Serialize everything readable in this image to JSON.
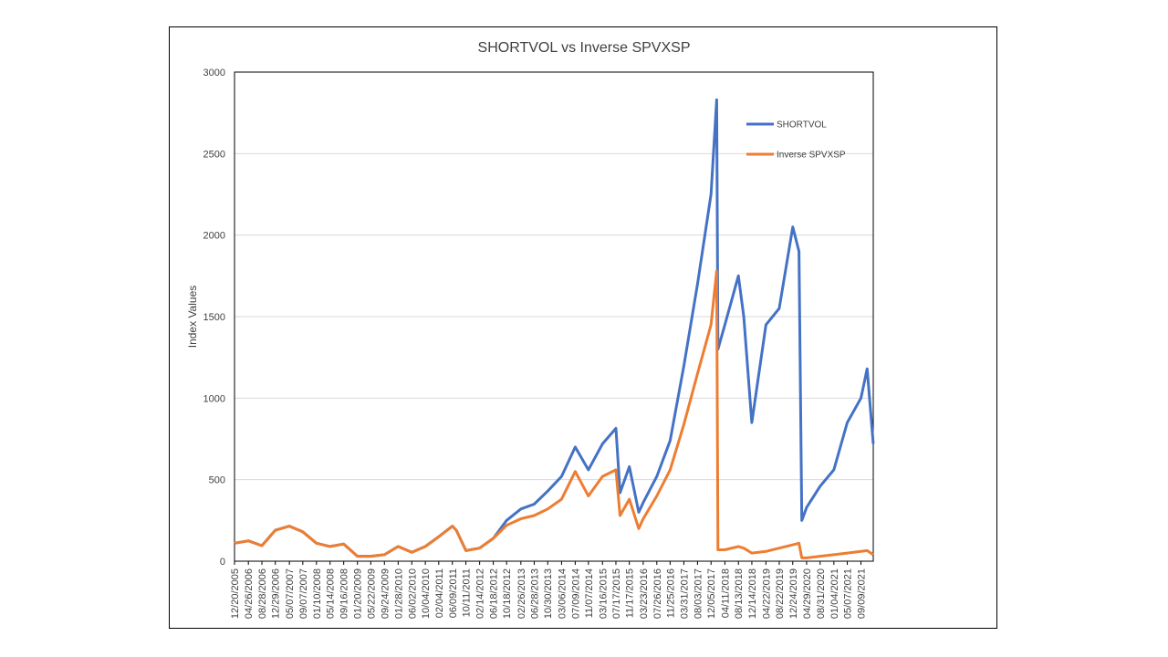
{
  "chart_data": {
    "type": "line",
    "title": "SHORTVOL vs Inverse SPVXSP",
    "xlabel": "",
    "ylabel": "Index Values",
    "ylim": [
      0,
      3000
    ],
    "y_ticks": [
      0,
      500,
      1000,
      1500,
      2000,
      2500,
      3000
    ],
    "grid": true,
    "legend_position": "top-right",
    "x_tick_labels": [
      "12/20/2005",
      "04/26/2006",
      "08/28/2006",
      "12/29/2006",
      "05/07/2007",
      "09/07/2007",
      "01/10/2008",
      "05/14/2008",
      "09/16/2008",
      "01/20/2009",
      "05/22/2009",
      "09/24/2009",
      "01/28/2010",
      "06/02/2010",
      "10/04/2010",
      "02/04/2011",
      "06/09/2011",
      "10/11/2011",
      "02/14/2012",
      "06/18/2012",
      "10/18/2012",
      "02/26/2013",
      "06/28/2013",
      "10/30/2013",
      "03/06/2014",
      "07/09/2014",
      "11/07/2014",
      "03/16/2015",
      "07/17/2015",
      "11/17/2015",
      "03/23/2016",
      "07/26/2016",
      "11/25/2016",
      "03/31/2017",
      "08/03/2017",
      "12/05/2017",
      "04/11/2018",
      "08/13/2018",
      "12/14/2018",
      "04/22/2019",
      "08/22/2019",
      "12/24/2019",
      "04/29/2020",
      "08/31/2020",
      "01/04/2021",
      "05/07/2021",
      "09/09/2021"
    ],
    "series": [
      {
        "name": "SHORTVOL",
        "color": "#4472C4",
        "x": [
          "12/20/2005",
          "04/26/2006",
          "08/28/2006",
          "12/29/2006",
          "05/07/2007",
          "09/07/2007",
          "01/10/2008",
          "05/14/2008",
          "09/16/2008",
          "01/20/2009",
          "05/22/2009",
          "09/24/2009",
          "01/28/2010",
          "06/02/2010",
          "10/04/2010",
          "02/04/2011",
          "06/09/2011",
          "07/15/2011",
          "10/11/2011",
          "02/14/2012",
          "06/18/2012",
          "10/18/2012",
          "02/26/2013",
          "06/28/2013",
          "10/30/2013",
          "03/06/2014",
          "07/09/2014",
          "11/07/2014",
          "03/16/2015",
          "07/17/2015",
          "08/24/2015",
          "11/17/2015",
          "02/11/2016",
          "03/23/2016",
          "07/26/2016",
          "11/25/2016",
          "03/31/2017",
          "08/03/2017",
          "12/05/2017",
          "01/26/2018",
          "02/06/2018",
          "04/11/2018",
          "08/13/2018",
          "10/01/2018",
          "12/14/2018",
          "04/22/2019",
          "08/22/2019",
          "12/24/2019",
          "02/19/2020",
          "03/16/2020",
          "04/29/2020",
          "08/31/2020",
          "01/04/2021",
          "05/07/2021",
          "09/09/2021",
          "11/05/2021",
          "12/31/2021"
        ],
        "values": [
          110,
          125,
          95,
          190,
          215,
          180,
          110,
          90,
          105,
          30,
          30,
          40,
          90,
          55,
          90,
          150,
          215,
          190,
          65,
          80,
          140,
          250,
          320,
          350,
          430,
          520,
          700,
          560,
          720,
          815,
          420,
          580,
          300,
          360,
          520,
          740,
          1200,
          1700,
          2250,
          2830,
          1300,
          1450,
          1750,
          1500,
          850,
          1450,
          1550,
          2050,
          1900,
          250,
          330,
          460,
          560,
          850,
          1000,
          1180,
          720
        ]
      },
      {
        "name": "Inverse SPVXSP",
        "color": "#ED7D31",
        "x": [
          "12/20/2005",
          "04/26/2006",
          "08/28/2006",
          "12/29/2006",
          "05/07/2007",
          "09/07/2007",
          "01/10/2008",
          "05/14/2008",
          "09/16/2008",
          "01/20/2009",
          "05/22/2009",
          "09/24/2009",
          "01/28/2010",
          "06/02/2010",
          "10/04/2010",
          "02/04/2011",
          "06/09/2011",
          "07/15/2011",
          "10/11/2011",
          "02/14/2012",
          "06/18/2012",
          "10/18/2012",
          "02/26/2013",
          "06/28/2013",
          "10/30/2013",
          "03/06/2014",
          "07/09/2014",
          "11/07/2014",
          "03/16/2015",
          "07/17/2015",
          "08/24/2015",
          "11/17/2015",
          "02/11/2016",
          "03/23/2016",
          "07/26/2016",
          "11/25/2016",
          "03/31/2017",
          "08/03/2017",
          "12/05/2017",
          "01/26/2018",
          "02/06/2018",
          "04/11/2018",
          "08/13/2018",
          "10/01/2018",
          "12/14/2018",
          "04/22/2019",
          "08/22/2019",
          "12/24/2019",
          "02/19/2020",
          "03/16/2020",
          "04/29/2020",
          "08/31/2020",
          "01/04/2021",
          "05/07/2021",
          "09/09/2021",
          "11/05/2021",
          "12/31/2021"
        ],
        "values": [
          110,
          125,
          95,
          190,
          215,
          180,
          110,
          90,
          105,
          30,
          30,
          40,
          90,
          55,
          90,
          150,
          215,
          190,
          65,
          80,
          140,
          220,
          260,
          280,
          320,
          380,
          550,
          400,
          520,
          560,
          280,
          380,
          200,
          260,
          400,
          560,
          840,
          1150,
          1450,
          1780,
          70,
          70,
          90,
          80,
          50,
          60,
          80,
          100,
          110,
          20,
          20,
          30,
          40,
          50,
          60,
          65,
          40
        ]
      }
    ]
  }
}
